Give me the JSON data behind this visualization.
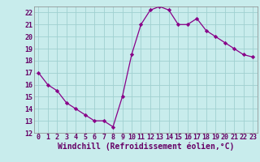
{
  "x": [
    0,
    1,
    2,
    3,
    4,
    5,
    6,
    7,
    8,
    9,
    10,
    11,
    12,
    13,
    14,
    15,
    16,
    17,
    18,
    19,
    20,
    21,
    22,
    23
  ],
  "y": [
    17.0,
    16.0,
    15.5,
    14.5,
    14.0,
    13.5,
    13.0,
    13.0,
    12.5,
    15.0,
    18.5,
    21.0,
    22.2,
    22.5,
    22.2,
    21.0,
    21.0,
    21.5,
    20.5,
    20.0,
    19.5,
    19.0,
    18.5,
    18.3
  ],
  "xlabel": "Windchill (Refroidissement éolien,°C)",
  "ylim": [
    12,
    22.5
  ],
  "xlim": [
    -0.5,
    23.5
  ],
  "yticks": [
    12,
    13,
    14,
    15,
    16,
    17,
    18,
    19,
    20,
    21,
    22
  ],
  "xticks": [
    0,
    1,
    2,
    3,
    4,
    5,
    6,
    7,
    8,
    9,
    10,
    11,
    12,
    13,
    14,
    15,
    16,
    17,
    18,
    19,
    20,
    21,
    22,
    23
  ],
  "line_color": "#880088",
  "marker_color": "#880088",
  "bg_color": "#c8ecec",
  "grid_color": "#a0d0d0",
  "tick_label_fontsize": 6,
  "xlabel_fontsize": 7
}
